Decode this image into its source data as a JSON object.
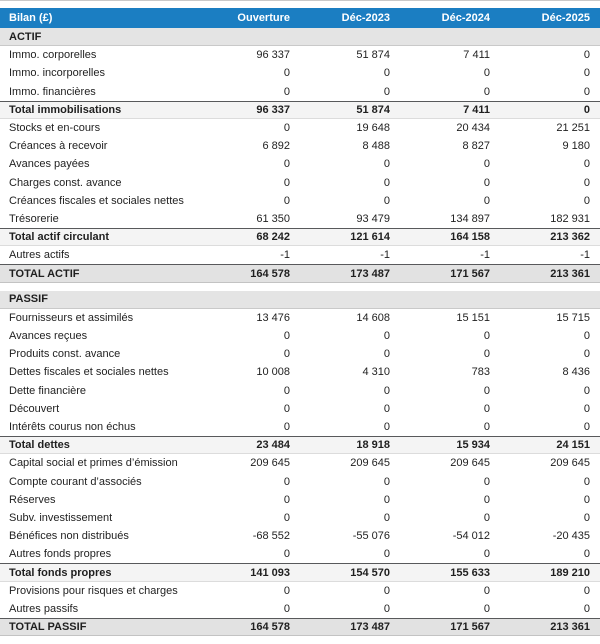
{
  "title": "Bilan (£)",
  "columns": [
    "Ouverture",
    "Déc-2023",
    "Déc-2024",
    "Déc-2025"
  ],
  "colors": {
    "header_bg": "#1b7ec2",
    "header_text": "#ffffff",
    "section_bg": "#e4e4e4",
    "subtotal_bg": "#f4f4f4",
    "grandtotal_bg": "#e2e2e2",
    "total_border": "#58595b"
  },
  "sections": [
    {
      "name": "ACTIF",
      "rows": [
        {
          "label": "Immo. corporelles",
          "values": [
            "96 337",
            "51 874",
            "7 411",
            "0"
          ],
          "style": "normal"
        },
        {
          "label": "Immo. incorporelles",
          "values": [
            "0",
            "0",
            "0",
            "0"
          ],
          "style": "normal"
        },
        {
          "label": "Immo. financières",
          "values": [
            "0",
            "0",
            "0",
            "0"
          ],
          "style": "normal"
        },
        {
          "label": "Total immobilisations",
          "values": [
            "96 337",
            "51 874",
            "7 411",
            "0"
          ],
          "style": "subtotal"
        },
        {
          "label": "Stocks et en-cours",
          "values": [
            "0",
            "19 648",
            "20 434",
            "21 251"
          ],
          "style": "normal"
        },
        {
          "label": "Créances à recevoir",
          "values": [
            "6 892",
            "8 488",
            "8 827",
            "9 180"
          ],
          "style": "normal"
        },
        {
          "label": "Avances payées",
          "values": [
            "0",
            "0",
            "0",
            "0"
          ],
          "style": "normal"
        },
        {
          "label": "Charges const. avance",
          "values": [
            "0",
            "0",
            "0",
            "0"
          ],
          "style": "normal"
        },
        {
          "label": "Créances fiscales et sociales nettes",
          "values": [
            "0",
            "0",
            "0",
            "0"
          ],
          "style": "normal"
        },
        {
          "label": "Trésorerie",
          "values": [
            "61 350",
            "93 479",
            "134 897",
            "182 931"
          ],
          "style": "normal"
        },
        {
          "label": "Total actif circulant",
          "values": [
            "68 242",
            "121 614",
            "164 158",
            "213 362"
          ],
          "style": "subtotal"
        },
        {
          "label": "Autres actifs",
          "values": [
            "-1",
            "-1",
            "-1",
            "-1"
          ],
          "style": "normal"
        },
        {
          "label": "TOTAL ACTIF",
          "values": [
            "164 578",
            "173 487",
            "171 567",
            "213 361"
          ],
          "style": "grandtotal"
        }
      ]
    },
    {
      "name": "PASSIF",
      "rows": [
        {
          "label": "Fournisseurs et assimilés",
          "values": [
            "13 476",
            "14 608",
            "15 151",
            "15 715"
          ],
          "style": "normal"
        },
        {
          "label": "Avances reçues",
          "values": [
            "0",
            "0",
            "0",
            "0"
          ],
          "style": "normal"
        },
        {
          "label": "Produits const. avance",
          "values": [
            "0",
            "0",
            "0",
            "0"
          ],
          "style": "normal"
        },
        {
          "label": "Dettes fiscales et sociales nettes",
          "values": [
            "10 008",
            "4 310",
            "783",
            "8 436"
          ],
          "style": "normal"
        },
        {
          "label": "Dette financière",
          "values": [
            "0",
            "0",
            "0",
            "0"
          ],
          "style": "normal"
        },
        {
          "label": "Découvert",
          "values": [
            "0",
            "0",
            "0",
            "0"
          ],
          "style": "normal"
        },
        {
          "label": "Intérêts courus non échus",
          "values": [
            "0",
            "0",
            "0",
            "0"
          ],
          "style": "normal"
        },
        {
          "label": "Total dettes",
          "values": [
            "23 484",
            "18 918",
            "15 934",
            "24 151"
          ],
          "style": "subtotal"
        },
        {
          "label": "Capital social et primes d’émission",
          "values": [
            "209 645",
            "209 645",
            "209 645",
            "209 645"
          ],
          "style": "normal"
        },
        {
          "label": "Compte courant d’associés",
          "values": [
            "0",
            "0",
            "0",
            "0"
          ],
          "style": "normal"
        },
        {
          "label": "Réserves",
          "values": [
            "0",
            "0",
            "0",
            "0"
          ],
          "style": "normal"
        },
        {
          "label": "Subv. investissement",
          "values": [
            "0",
            "0",
            "0",
            "0"
          ],
          "style": "normal"
        },
        {
          "label": "Bénéfices non distribués",
          "values": [
            "-68 552",
            "-55 076",
            "-54 012",
            "-20 435"
          ],
          "style": "normal"
        },
        {
          "label": "Autres fonds propres",
          "values": [
            "0",
            "0",
            "0",
            "0"
          ],
          "style": "normal"
        },
        {
          "label": "Total fonds propres",
          "values": [
            "141 093",
            "154 570",
            "155 633",
            "189 210"
          ],
          "style": "subtotal"
        },
        {
          "label": "Provisions pour risques et charges",
          "values": [
            "0",
            "0",
            "0",
            "0"
          ],
          "style": "normal"
        },
        {
          "label": "Autres passifs",
          "values": [
            "0",
            "0",
            "0",
            "0"
          ],
          "style": "normal"
        },
        {
          "label": "TOTAL PASSIF",
          "values": [
            "164 578",
            "173 487",
            "171 567",
            "213 361"
          ],
          "style": "grandtotal"
        }
      ]
    }
  ],
  "chart_data": {
    "type": "table",
    "title": "Bilan (£)",
    "columns": [
      "Ouverture",
      "Déc-2023",
      "Déc-2024",
      "Déc-2025"
    ],
    "sections": [
      {
        "name": "ACTIF",
        "rows": [
          {
            "label": "Immo. corporelles",
            "values": [
              96337,
              51874,
              7411,
              0
            ]
          },
          {
            "label": "Immo. incorporelles",
            "values": [
              0,
              0,
              0,
              0
            ]
          },
          {
            "label": "Immo. financières",
            "values": [
              0,
              0,
              0,
              0
            ]
          },
          {
            "label": "Total immobilisations",
            "values": [
              96337,
              51874,
              7411,
              0
            ]
          },
          {
            "label": "Stocks et en-cours",
            "values": [
              0,
              19648,
              20434,
              21251
            ]
          },
          {
            "label": "Créances à recevoir",
            "values": [
              6892,
              8488,
              8827,
              9180
            ]
          },
          {
            "label": "Avances payées",
            "values": [
              0,
              0,
              0,
              0
            ]
          },
          {
            "label": "Charges const. avance",
            "values": [
              0,
              0,
              0,
              0
            ]
          },
          {
            "label": "Créances fiscales et sociales nettes",
            "values": [
              0,
              0,
              0,
              0
            ]
          },
          {
            "label": "Trésorerie",
            "values": [
              61350,
              93479,
              134897,
              182931
            ]
          },
          {
            "label": "Total actif circulant",
            "values": [
              68242,
              121614,
              164158,
              213362
            ]
          },
          {
            "label": "Autres actifs",
            "values": [
              -1,
              -1,
              -1,
              -1
            ]
          },
          {
            "label": "TOTAL ACTIF",
            "values": [
              164578,
              173487,
              171567,
              213361
            ]
          }
        ]
      },
      {
        "name": "PASSIF",
        "rows": [
          {
            "label": "Fournisseurs et assimilés",
            "values": [
              13476,
              14608,
              15151,
              15715
            ]
          },
          {
            "label": "Avances reçues",
            "values": [
              0,
              0,
              0,
              0
            ]
          },
          {
            "label": "Produits const. avance",
            "values": [
              0,
              0,
              0,
              0
            ]
          },
          {
            "label": "Dettes fiscales et sociales nettes",
            "values": [
              10008,
              4310,
              783,
              8436
            ]
          },
          {
            "label": "Dette financière",
            "values": [
              0,
              0,
              0,
              0
            ]
          },
          {
            "label": "Découvert",
            "values": [
              0,
              0,
              0,
              0
            ]
          },
          {
            "label": "Intérêts courus non échus",
            "values": [
              0,
              0,
              0,
              0
            ]
          },
          {
            "label": "Total dettes",
            "values": [
              23484,
              18918,
              15934,
              24151
            ]
          },
          {
            "label": "Capital social et primes d’émission",
            "values": [
              209645,
              209645,
              209645,
              209645
            ]
          },
          {
            "label": "Compte courant d’associés",
            "values": [
              0,
              0,
              0,
              0
            ]
          },
          {
            "label": "Réserves",
            "values": [
              0,
              0,
              0,
              0
            ]
          },
          {
            "label": "Subv. investissement",
            "values": [
              0,
              0,
              0,
              0
            ]
          },
          {
            "label": "Bénéfices non distribués",
            "values": [
              -68552,
              -55076,
              -54012,
              -20435
            ]
          },
          {
            "label": "Autres fonds propres",
            "values": [
              0,
              0,
              0,
              0
            ]
          },
          {
            "label": "Total fonds propres",
            "values": [
              141093,
              154570,
              155633,
              189210
            ]
          },
          {
            "label": "Provisions pour risques et charges",
            "values": [
              0,
              0,
              0,
              0
            ]
          },
          {
            "label": "Autres passifs",
            "values": [
              0,
              0,
              0,
              0
            ]
          },
          {
            "label": "TOTAL PASSIF",
            "values": [
              164578,
              173487,
              171567,
              213361
            ]
          }
        ]
      }
    ]
  }
}
